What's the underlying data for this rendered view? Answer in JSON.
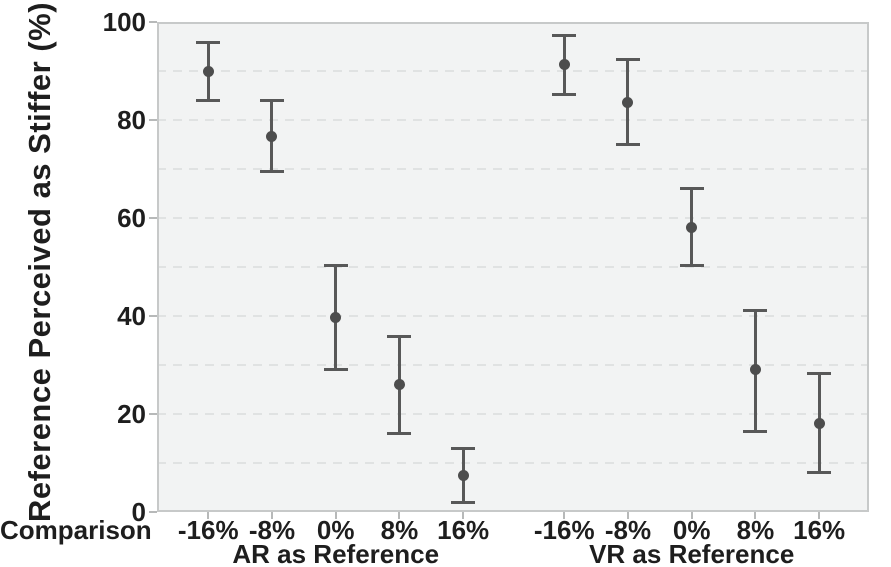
{
  "chart_data": {
    "type": "scatter",
    "subtype": "point-estimates-with-error-bars",
    "title": "",
    "ylabel": "Reference Perceived as Stiffer (%)",
    "xlabel": "Comparison",
    "ylim": [
      0,
      100
    ],
    "yticks": [
      0,
      20,
      40,
      60,
      80,
      100
    ],
    "grid": {
      "every": 10,
      "style": "dashed",
      "color": "#e0e2e2"
    },
    "legend": "none",
    "categories": [
      "-16%",
      "-8%",
      "0%",
      "8%",
      "16%"
    ],
    "groups": [
      {
        "label": "AR as Reference",
        "series": [
          {
            "category": "-16%",
            "mean": 90.0,
            "ci_low": 84.0,
            "ci_high": 95.9
          },
          {
            "category": "-8%",
            "mean": 76.7,
            "ci_low": 69.5,
            "ci_high": 84.0
          },
          {
            "category": "0%",
            "mean": 39.7,
            "ci_low": 29.1,
            "ci_high": 50.4
          },
          {
            "category": "8%",
            "mean": 26.0,
            "ci_low": 16.1,
            "ci_high": 35.9
          },
          {
            "category": "16%",
            "mean": 7.4,
            "ci_low": 2.0,
            "ci_high": 13.0
          }
        ]
      },
      {
        "label": "VR as Reference",
        "series": [
          {
            "category": "-16%",
            "mean": 91.4,
            "ci_low": 85.3,
            "ci_high": 97.2
          },
          {
            "category": "-8%",
            "mean": 83.6,
            "ci_low": 74.9,
            "ci_high": 92.3
          },
          {
            "category": "0%",
            "mean": 58.0,
            "ci_low": 50.3,
            "ci_high": 66.1
          },
          {
            "category": "8%",
            "mean": 29.0,
            "ci_low": 16.5,
            "ci_high": 41.2
          },
          {
            "category": "16%",
            "mean": 18.0,
            "ci_low": 8.0,
            "ci_high": 28.2
          }
        ]
      }
    ],
    "layout": {
      "tick_start_frac": 0.072,
      "tick_step_frac": 0.0895,
      "group_offset_frac": 0.5,
      "grid_on": true,
      "legend_position": "none"
    },
    "colors": {
      "plot_bg": "#f2f3f3",
      "grid": "#e0e2e2",
      "border": "#c7c9c9",
      "marker": "#4d4d4d",
      "error_bar": "#585858",
      "text": "#1e1e1e"
    }
  }
}
